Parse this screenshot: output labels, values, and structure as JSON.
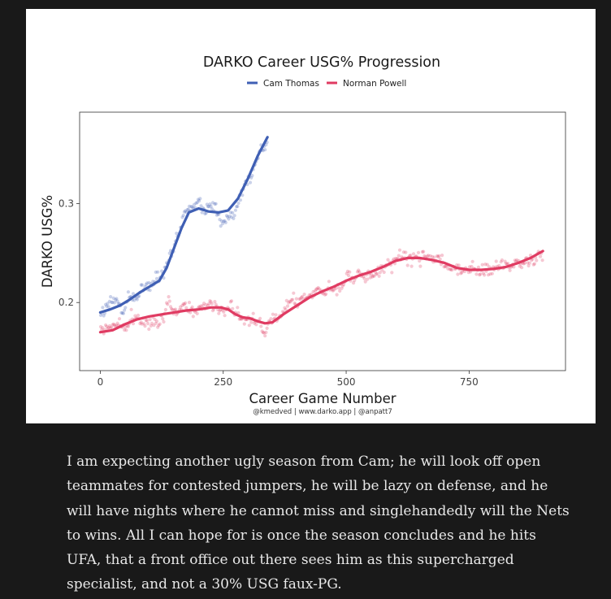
{
  "chart_data": {
    "type": "scatter",
    "title": "DARKO Career USG% Progression",
    "xlabel": "Career Game Number",
    "ylabel": "DARKO USG%",
    "caption": "@kmedved | www.darko.app | @anpatt7",
    "xlim": [
      -42,
      946
    ],
    "ylim": [
      0.1312,
      0.3923
    ],
    "x_ticks": [
      0,
      250,
      500,
      750
    ],
    "x_tick_labels": [
      "0",
      "250",
      "500",
      "750"
    ],
    "y_ticks": [
      0.2,
      0.3
    ],
    "y_tick_labels": [
      "0.2",
      "0.3"
    ],
    "legend_position": "top-center",
    "series": [
      {
        "name": "Cam Thomas",
        "color": "#3f5fb4",
        "games": 340,
        "smooth": [
          [
            0,
            0.19
          ],
          [
            20,
            0.193
          ],
          [
            40,
            0.197
          ],
          [
            60,
            0.203
          ],
          [
            80,
            0.21
          ],
          [
            100,
            0.216
          ],
          [
            120,
            0.222
          ],
          [
            135,
            0.235
          ],
          [
            150,
            0.255
          ],
          [
            165,
            0.275
          ],
          [
            180,
            0.291
          ],
          [
            200,
            0.295
          ],
          [
            220,
            0.292
          ],
          [
            240,
            0.291
          ],
          [
            260,
            0.293
          ],
          [
            280,
            0.305
          ],
          [
            300,
            0.325
          ],
          [
            320,
            0.348
          ],
          [
            340,
            0.367
          ]
        ]
      },
      {
        "name": "Norman Powell",
        "color": "#e03b62",
        "games": 900,
        "smooth": [
          [
            0,
            0.17
          ],
          [
            25,
            0.172
          ],
          [
            50,
            0.178
          ],
          [
            75,
            0.183
          ],
          [
            100,
            0.186
          ],
          [
            125,
            0.188
          ],
          [
            150,
            0.19
          ],
          [
            175,
            0.192
          ],
          [
            200,
            0.193
          ],
          [
            225,
            0.195
          ],
          [
            245,
            0.195
          ],
          [
            260,
            0.193
          ],
          [
            275,
            0.188
          ],
          [
            290,
            0.185
          ],
          [
            305,
            0.184
          ],
          [
            320,
            0.181
          ],
          [
            335,
            0.179
          ],
          [
            350,
            0.18
          ],
          [
            375,
            0.189
          ],
          [
            400,
            0.197
          ],
          [
            425,
            0.205
          ],
          [
            450,
            0.211
          ],
          [
            475,
            0.216
          ],
          [
            500,
            0.222
          ],
          [
            525,
            0.227
          ],
          [
            550,
            0.231
          ],
          [
            575,
            0.236
          ],
          [
            600,
            0.242
          ],
          [
            625,
            0.245
          ],
          [
            650,
            0.245
          ],
          [
            675,
            0.243
          ],
          [
            700,
            0.24
          ],
          [
            725,
            0.235
          ],
          [
            750,
            0.233
          ],
          [
            775,
            0.233
          ],
          [
            800,
            0.234
          ],
          [
            825,
            0.236
          ],
          [
            850,
            0.24
          ],
          [
            875,
            0.245
          ],
          [
            900,
            0.252
          ]
        ]
      }
    ]
  },
  "article": {
    "paragraph": "I am expecting another ugly season from Cam; he will look off open teammates for contested jumpers, he will be lazy on defense, and he will have nights where he cannot miss and singlehandedly will the Nets to wins. All I can hope for is once the season concludes and he hits UFA, that a front office out there sees him as this supercharged specialist, and not a 30% USG faux-PG."
  }
}
